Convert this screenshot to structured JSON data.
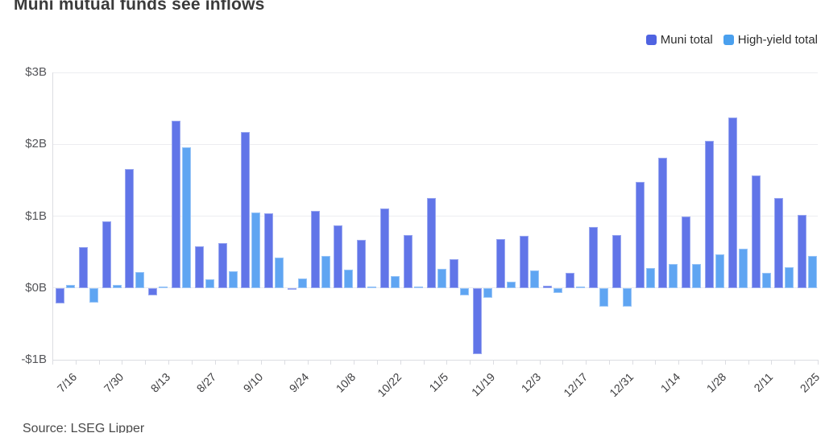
{
  "title": "Muni mutual funds see inflows",
  "source": "Source: LSEG Lipper",
  "colors": {
    "muni_fill": "#6175E8",
    "muni_edge": "#9AA8F0",
    "muni_legend": "#4F63E1",
    "high_yield_fill": "#5FA5F2",
    "high_yield_edge": "#99C5F7",
    "high_yield_legend": "#4AA0EE",
    "gridline": "#ECEDF0",
    "axis_line": "#DCDDE2",
    "title_text": "#3B3B3B",
    "tick_text": "#55565A"
  },
  "chart_data": {
    "type": "bar",
    "title": "Muni mutual funds see inflows",
    "xlabel": "",
    "ylabel": "",
    "ylim": [
      -1,
      3
    ],
    "grid": "horizontal",
    "legend_position": "top-right",
    "categories": [
      "7/16",
      "7/23",
      "7/30",
      "8/6",
      "8/13",
      "8/20",
      "8/27",
      "9/3",
      "9/10",
      "9/17",
      "9/24",
      "10/1",
      "10/8",
      "10/15",
      "10/22",
      "10/29",
      "11/5",
      "11/12",
      "11/19",
      "11/26",
      "12/3",
      "12/10",
      "12/17",
      "12/24",
      "12/31",
      "1/7",
      "1/14",
      "1/21",
      "1/28",
      "2/4",
      "2/11",
      "2/18",
      "2/25"
    ],
    "x_tick_labels": [
      "7/16",
      "7/30",
      "8/13",
      "8/27",
      "9/10",
      "9/24",
      "10/8",
      "10/22",
      "11/5",
      "11/19",
      "12/3",
      "12/17",
      "12/31",
      "1/14",
      "1/28",
      "2/11",
      "2/25"
    ],
    "y_ticks": [
      {
        "label": "$3B",
        "value": 3
      },
      {
        "label": "$2B",
        "value": 2
      },
      {
        "label": "$1B",
        "value": 1
      },
      {
        "label": "$0B",
        "value": 0
      },
      {
        "label": "-$1B",
        "value": -1
      }
    ],
    "unit": "billions USD",
    "series": [
      {
        "name": "Muni total",
        "color": "#6175E8",
        "edge_color": "#9AA8F0",
        "legend_color": "#4F63E1",
        "values": [
          -0.22,
          0.57,
          0.93,
          1.65,
          -0.1,
          2.33,
          0.58,
          0.62,
          2.17,
          1.04,
          -0.03,
          1.07,
          0.87,
          0.67,
          1.11,
          0.74,
          1.25,
          0.4,
          -0.92,
          0.68,
          0.73,
          0.03,
          0.21,
          0.85,
          0.74,
          1.48,
          1.81,
          0.99,
          2.05,
          2.37,
          1.57,
          1.25,
          1.02
        ]
      },
      {
        "name": "High-yield total",
        "color": "#5FA5F2",
        "edge_color": "#99C5F7",
        "legend_color": "#4AA0EE",
        "values": [
          0.04,
          -0.21,
          0.04,
          0.22,
          0.02,
          1.96,
          0.12,
          0.23,
          1.05,
          0.42,
          0.13,
          0.45,
          0.26,
          0.02,
          0.17,
          0.01,
          0.27,
          -0.1,
          -0.14,
          0.09,
          0.24,
          -0.07,
          0.02,
          -0.26,
          -0.26,
          0.28,
          0.33,
          0.33,
          0.47,
          0.55,
          0.21,
          0.29,
          0.45
        ]
      }
    ]
  }
}
